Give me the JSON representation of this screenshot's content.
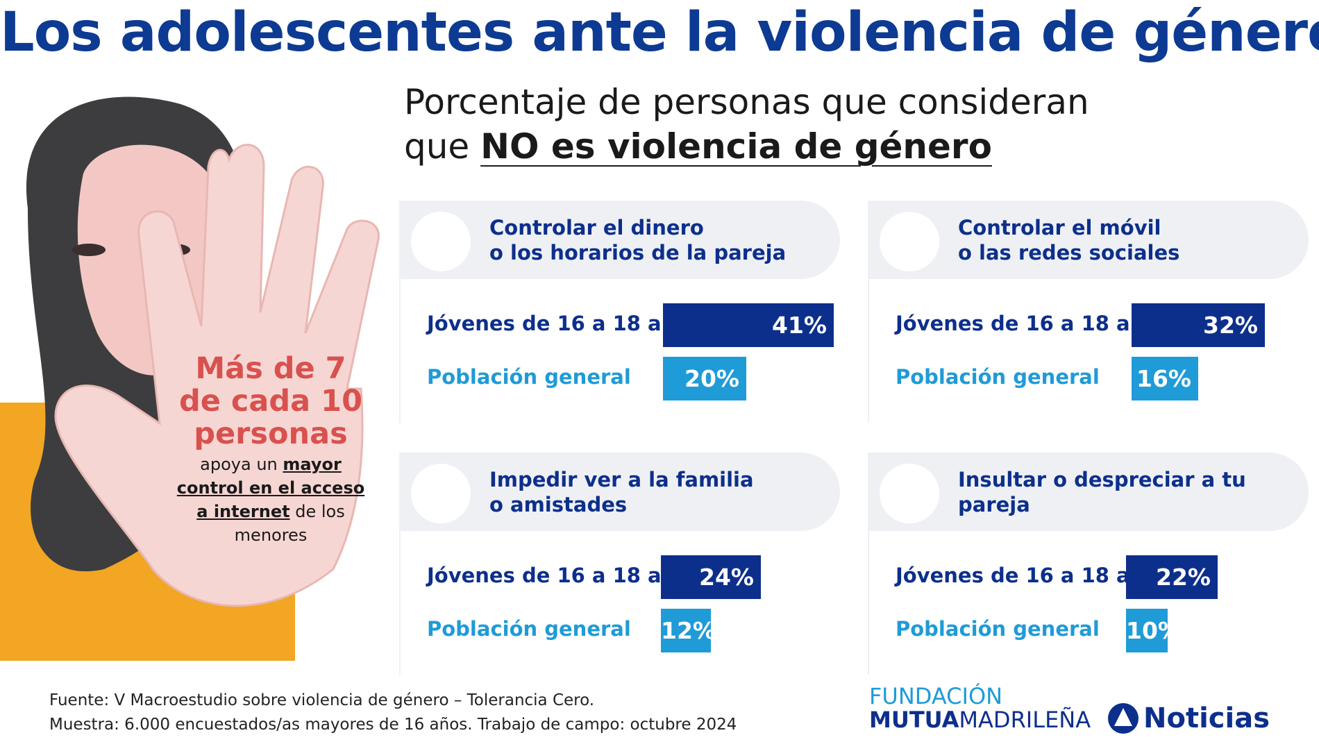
{
  "title": "Los adolescentes ante la violencia de género",
  "subtitle": {
    "line1": "Porcentaje de personas que consideran",
    "line2_prefix": "que",
    "line2_emphasis": "NO es violencia de género"
  },
  "callout": {
    "headline": [
      "Más de 7",
      "de cada 10",
      "personas"
    ],
    "body_prefix": "apoya un",
    "body_emphasis": "mayor control en el acceso a internet",
    "body_suffix": "de los menores"
  },
  "chart_data": [
    {
      "type": "bar",
      "title": "Controlar el dinero\no los horarios de la pareja",
      "categories": [
        "Jóvenes de 16 a 18 años",
        "Población general"
      ],
      "values": [
        41,
        20
      ],
      "value_labels": [
        "41%",
        "20%"
      ],
      "colors": [
        "#0d2f8c",
        "#1f9bd7"
      ]
    },
    {
      "type": "bar",
      "title": "Controlar el móvil\no las redes sociales",
      "categories": [
        "Jóvenes de 16 a 18 años",
        "Población general"
      ],
      "values": [
        32,
        16
      ],
      "value_labels": [
        "32%",
        "16%"
      ],
      "colors": [
        "#0d2f8c",
        "#1f9bd7"
      ]
    },
    {
      "type": "bar",
      "title": "Impedir ver a la familia\no amistades",
      "categories": [
        "Jóvenes de 16 a 18 años",
        "Población general"
      ],
      "values": [
        24,
        12
      ],
      "value_labels": [
        "24%",
        "12%"
      ],
      "colors": [
        "#0d2f8c",
        "#1f9bd7"
      ]
    },
    {
      "type": "bar",
      "title": "Insultar o despreciar a tu pareja",
      "categories": [
        "Jóvenes de 16 a 18 años",
        "Población general"
      ],
      "values": [
        22,
        10
      ],
      "value_labels": [
        "22%",
        "10%"
      ],
      "colors": [
        "#0d2f8c",
        "#1f9bd7"
      ]
    }
  ],
  "footer": {
    "source": "Fuente: V Macroestudio sobre violencia de género – Tolerancia Cero.",
    "sample": "Muestra: 6.000 encuestados/as mayores de 16 años. Trabajo de campo: octubre 2024",
    "logo1_top": "FUNDACIÓN",
    "logo1_bold": "MUTUA",
    "logo1_light": "MADRILEÑA",
    "logo2": "Noticias"
  }
}
